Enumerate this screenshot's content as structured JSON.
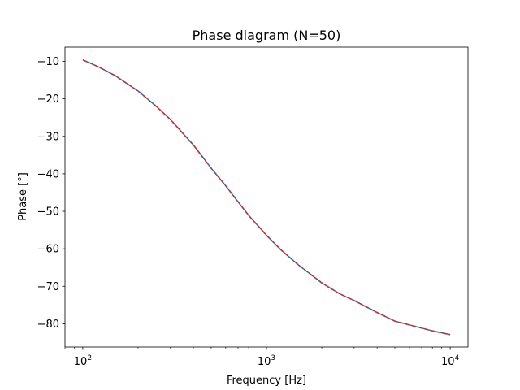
{
  "chart_data": {
    "type": "line",
    "title": "Phase diagram (N=50)",
    "xlabel": "Frequency [Hz]",
    "ylabel": "Phase [°]",
    "xscale": "log",
    "xlim": [
      80,
      12500
    ],
    "ylim": [
      -86.2,
      -6.2
    ],
    "grid": false,
    "legend": "none",
    "x_ticks": [
      {
        "value": 100,
        "base": "10",
        "exp": "2"
      },
      {
        "value": 1000,
        "base": "10",
        "exp": "3"
      },
      {
        "value": 10000,
        "base": "10",
        "exp": "4"
      }
    ],
    "y_ticks": [
      {
        "value": -10,
        "label": "−10"
      },
      {
        "value": -20,
        "label": "−20"
      },
      {
        "value": -30,
        "label": "−30"
      },
      {
        "value": -40,
        "label": "−40"
      },
      {
        "value": -50,
        "label": "−50"
      },
      {
        "value": -60,
        "label": "−60"
      },
      {
        "value": -70,
        "label": "−70"
      },
      {
        "value": -80,
        "label": "−80"
      }
    ],
    "x": [
      100,
      120,
      150,
      200,
      250,
      300,
      400,
      500,
      600,
      800,
      1000,
      1200,
      1500,
      2000,
      2500,
      3000,
      4000,
      5000,
      6000,
      8000,
      10000
    ],
    "series": [
      {
        "color": "#1f77b4",
        "linestyle": "solid",
        "values": [
          -9.6,
          -11.3,
          -13.8,
          -17.9,
          -21.9,
          -25.5,
          -32.3,
          -38.5,
          -43.2,
          -51.1,
          -56.4,
          -60.3,
          -64.4,
          -69.1,
          -72.0,
          -73.8,
          -77.0,
          -79.3,
          -80.3,
          -81.9,
          -82.9
        ]
      },
      {
        "color": "#d62728",
        "linestyle": "dashed",
        "values": [
          -9.6,
          -11.3,
          -13.8,
          -17.9,
          -21.9,
          -25.5,
          -32.3,
          -38.5,
          -43.2,
          -51.1,
          -56.4,
          -60.3,
          -64.4,
          -69.1,
          -72.0,
          -73.8,
          -77.0,
          -79.3,
          -80.3,
          -81.9,
          -82.9
        ]
      }
    ]
  }
}
